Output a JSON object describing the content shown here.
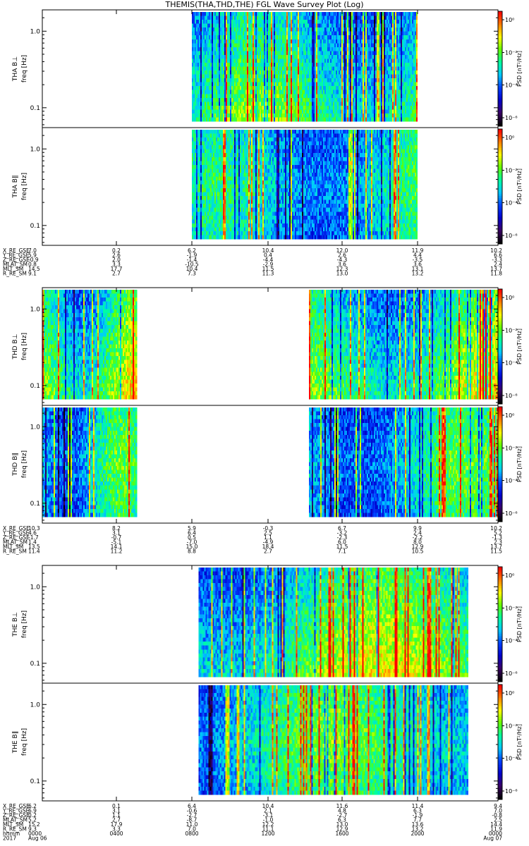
{
  "title": "THEMIS(THA,THD,THE) FGL Wave Survey Plot (Log)",
  "colorbar_label": "PSD [nT²/Hz]",
  "freq_label": "freq [Hz]",
  "chart_data": {
    "type": "heatmap",
    "y_scale": "log",
    "y_ticks": [
      {
        "value": 1.0,
        "label": "1.0"
      },
      {
        "value": 0.1,
        "label": "0.1"
      }
    ],
    "colorbar_ticks_a": [
      "10⁰",
      "10⁻²",
      "10⁻⁴",
      "10⁻⁶"
    ],
    "colorbar_ticks_b": [
      "10⁰",
      "10⁻²",
      "10⁻⁴",
      "10⁻⁶"
    ],
    "colormap": [
      "#000000",
      "#3a0066",
      "#0000cc",
      "#0040ff",
      "#00c8ff",
      "#00ffa0",
      "#60ff00",
      "#ffff00",
      "#ff8000",
      "#ff0000"
    ],
    "panels": [
      {
        "ylabel": "THA B⊥",
        "colorbar": "a",
        "group": 0,
        "data_segments": [
          [
            0.328,
            0.821
          ]
        ],
        "base_level": 0.55,
        "high_freq_blue": true
      },
      {
        "ylabel": "THA B∥",
        "colorbar": "b",
        "group": 0,
        "data_segments": [
          [
            0.328,
            0.821
          ]
        ],
        "base_level": 0.45,
        "high_freq_blue": false
      },
      {
        "ylabel": "THD B⊥",
        "colorbar": "a",
        "group": 1,
        "data_segments": [
          [
            0.0,
            0.205
          ],
          [
            0.585,
            1.0
          ]
        ],
        "base_level": 0.6,
        "high_freq_blue": true
      },
      {
        "ylabel": "THD B∥",
        "colorbar": "b",
        "group": 1,
        "data_segments": [
          [
            0.0,
            0.205
          ],
          [
            0.585,
            1.0
          ]
        ],
        "base_level": 0.45,
        "high_freq_blue": false
      },
      {
        "ylabel": "THE B⊥",
        "colorbar": "a",
        "group": 2,
        "data_segments": [
          [
            0.343,
            0.934
          ]
        ],
        "base_level": 0.6,
        "high_freq_blue": true
      },
      {
        "ylabel": "THE B∥",
        "colorbar": "b",
        "group": 2,
        "data_segments": [
          [
            0.343,
            0.934
          ]
        ],
        "base_level": 0.5,
        "high_freq_blue": false
      }
    ],
    "ephemeris_groups": [
      {
        "labels": [
          "X_RE_GSE",
          "Y_RE_GSE",
          "Z_RE_GSE",
          "MLAT_SM",
          "MLT_SM",
          "R_RE_SM"
        ],
        "columns": [
          [
            "7.0",
            "5.9",
            "-0.9",
            "0.8",
            "14.5",
            "9.1"
          ],
          [
            "0.2",
            "2.6",
            "2.0",
            "3.3",
            "17.7",
            "2.7"
          ],
          [
            "6.2",
            "-1.9",
            "-1.4",
            "-10.5",
            "10.4",
            "7.3"
          ],
          [
            "10.4",
            "0.4",
            "-4.4",
            "-2.9",
            "11.5",
            "11.3"
          ],
          [
            "12.0",
            "2.6",
            "-4.3",
            "3.6",
            "12.3",
            "13.0"
          ],
          [
            "11.9",
            "4.4",
            "-3.5",
            "3.6",
            "13.1",
            "13.2"
          ],
          [
            "10.2",
            "6.6",
            "-3.3",
            "2.4",
            "13.7",
            "11.8"
          ]
        ]
      },
      {
        "labels": [
          "X_RE_GSE",
          "Y_RE_GSE",
          "Z_RE_GSE",
          "MLAT_SM",
          "MLT_SM",
          "R_RE_SM"
        ],
        "columns": [
          [
            "10.3",
            "4.6",
            "-1.7",
            "1.4",
            "13.5",
            "11.4"
          ],
          [
            "8.2",
            "3.1",
            "-0.7",
            "-5.1",
            "14.1",
            "11.2"
          ],
          [
            "5.9",
            "6.4",
            "0.5",
            "-7.0",
            "15.0",
            "8.8"
          ],
          [
            "-0.3",
            "2.5",
            "1.1",
            "-4.9",
            "18.4",
            "2.7"
          ],
          [
            "6.7",
            "-3.2",
            "-2.3",
            "6.0",
            "11.5",
            "7.1"
          ],
          [
            "9.9",
            "2.4",
            "-2.2",
            "8.0",
            "12.9",
            "10.5"
          ],
          [
            "10.2",
            "5.2",
            "-1.3",
            "2.3",
            "13.7",
            "11.5"
          ]
        ]
      },
      {
        "labels": [
          "X_RE_GSE",
          "Y_RE_GSE",
          "Z_RE_GSE",
          "MLAT_SM",
          "MLT_SM",
          "R_RE_SM",
          "hhmm",
          "2017"
        ],
        "columns": [
          [
            "6.2",
            "6.9",
            "0.2",
            "5.2",
            "15.2",
            "9.3",
            "0000",
            "Aug 06"
          ],
          [
            "0.1",
            "3.1",
            "1.1",
            "2.7",
            "17.9",
            "3.3",
            "0400",
            ""
          ],
          [
            "6.4",
            "-0.6",
            "-2.7",
            "-8.7",
            "11.0",
            "7.0",
            "0800",
            ""
          ],
          [
            "10.4",
            "2.1",
            "-3.1",
            "-1.0",
            "12.2",
            "11.1",
            "1200",
            ""
          ],
          [
            "11.6",
            "4.8",
            "-2.7",
            "6.3",
            "13.0",
            "12.9",
            "1600",
            ""
          ],
          [
            "11.4",
            "6.3",
            "-1.9",
            "7.7",
            "13.6",
            "13.2",
            "2000",
            ""
          ],
          [
            "9.4",
            "7.0",
            "-0.8",
            "2.5",
            "14.4",
            "11.9",
            "0000",
            "Aug 07"
          ]
        ]
      }
    ]
  }
}
